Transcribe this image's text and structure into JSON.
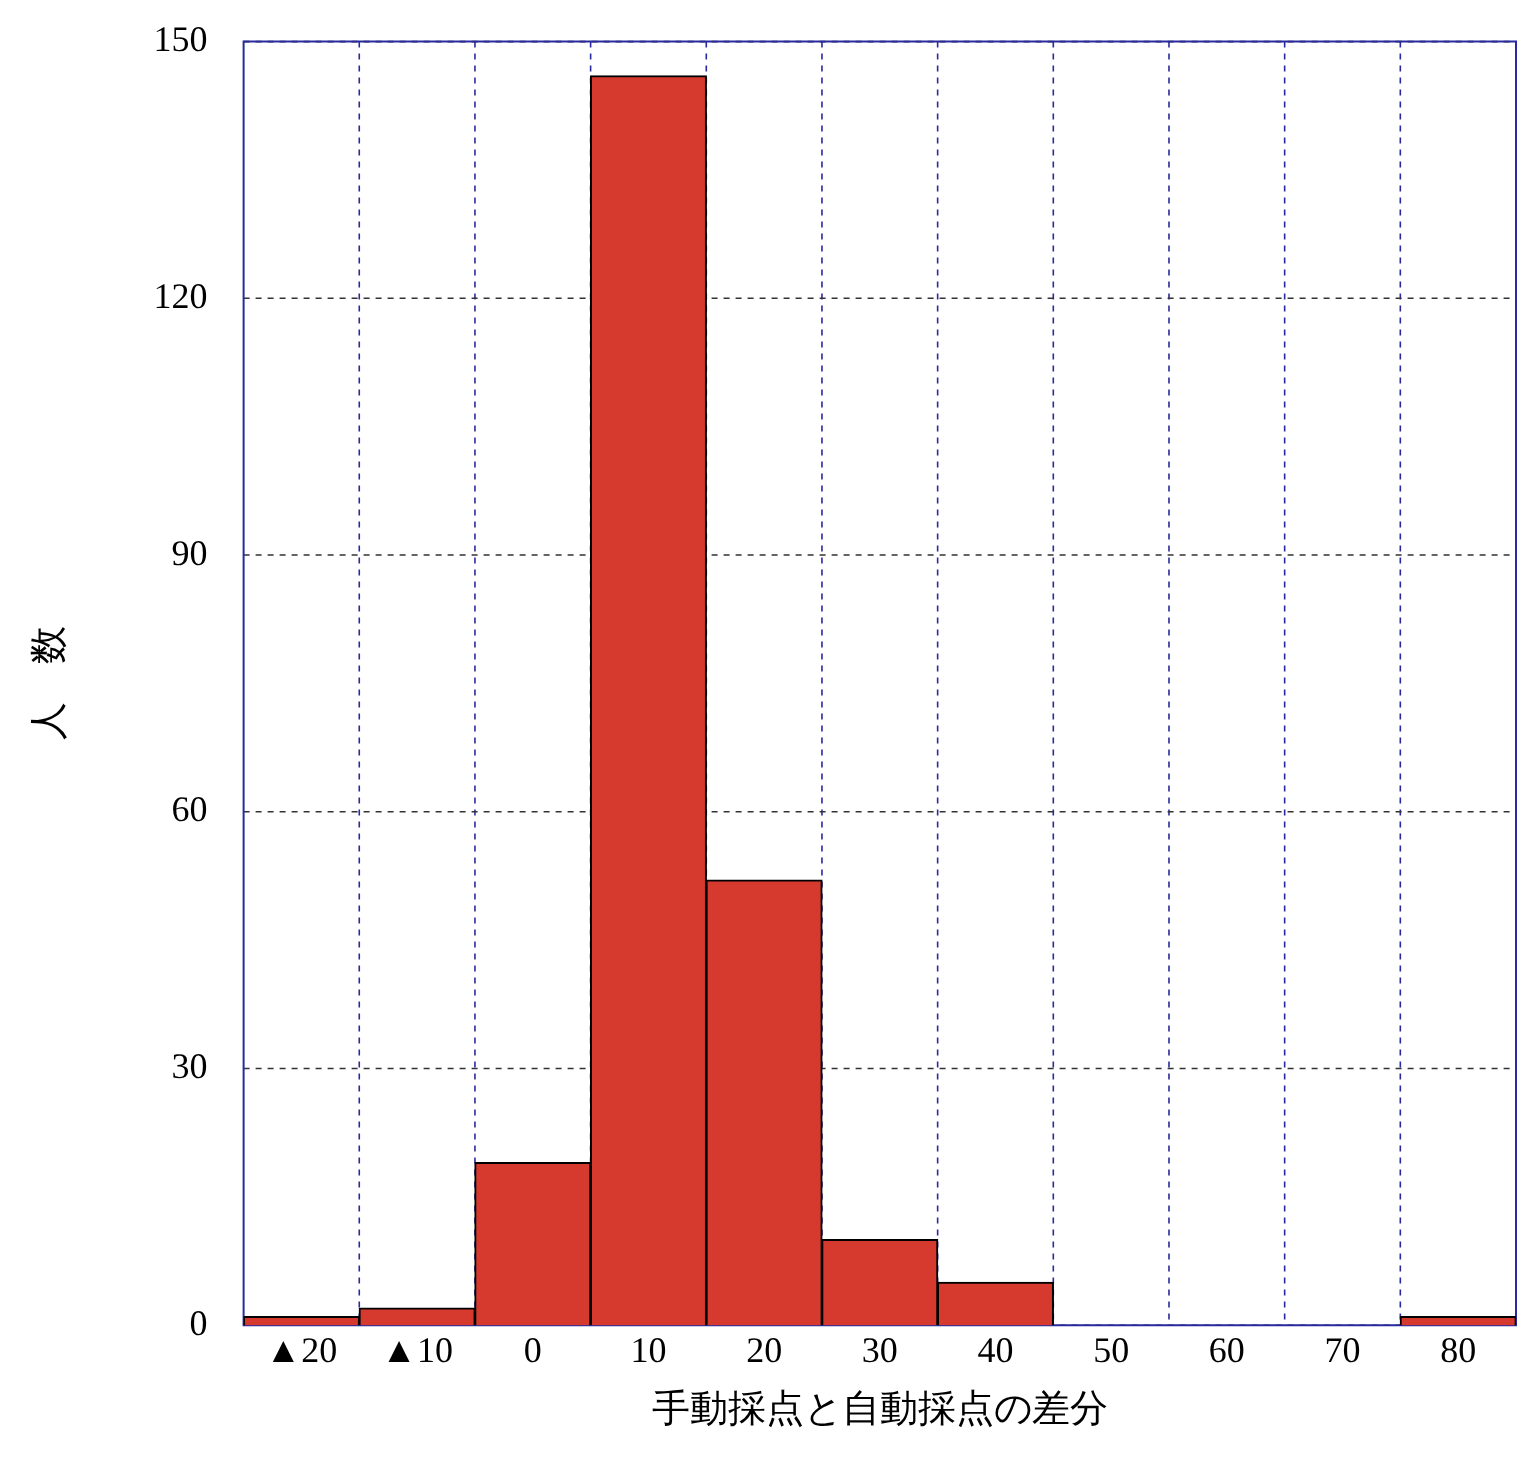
{
  "chart_data": {
    "type": "histogram",
    "xlabel": "手動採点と自動採点の差分",
    "ylabel": "人　数",
    "bins": [
      -25,
      -15,
      -5,
      5,
      15,
      25,
      35,
      45,
      55,
      65,
      75,
      85
    ],
    "values": [
      1,
      2,
      19,
      146,
      52,
      10,
      5,
      0,
      0,
      0,
      1
    ],
    "color": "#d63a2f",
    "xlim": [
      -25,
      85
    ],
    "xticks": [
      {
        "value": -20,
        "label": "▲20"
      },
      {
        "value": -15,
        "label": null
      },
      {
        "value": -10,
        "label": "▲10"
      },
      {
        "value": -5,
        "label": null
      },
      0,
      {
        "value": 5,
        "label": null
      },
      10,
      {
        "value": 15,
        "label": null
      },
      20,
      {
        "value": 25,
        "label": null
      },
      30,
      {
        "value": 35,
        "label": null
      },
      40,
      {
        "value": 45,
        "label": null
      },
      50,
      {
        "value": 55,
        "label": null
      },
      60,
      {
        "value": 65,
        "label": null
      },
      70,
      {
        "value": 75,
        "label": null
      },
      80
    ],
    "ylim": [
      0,
      150
    ],
    "yticks": [
      0,
      30,
      60,
      90,
      120,
      150
    ],
    "grid": true,
    "legend": false
  }
}
